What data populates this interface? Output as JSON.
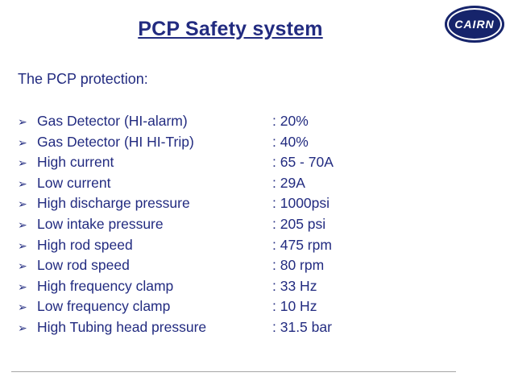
{
  "slide": {
    "title": "PCP Safety system",
    "intro": "The PCP protection:",
    "bullet_glyph": "➢",
    "items": [
      {
        "label": "Gas Detector (HI-alarm)",
        "value": ": 20%"
      },
      {
        "label": "Gas Detector (HI HI-Trip)",
        "value": ": 40%"
      },
      {
        "label": "High current",
        "value": ": 65 - 70A"
      },
      {
        "label": "Low current",
        "value": ": 29A"
      },
      {
        "label": "High discharge pressure",
        "value": ": 1000psi"
      },
      {
        "label": "Low intake pressure",
        "value": ": 205 psi"
      },
      {
        "label": "High rod speed",
        "value": ": 475 rpm"
      },
      {
        "label": "Low rod speed",
        "value": ": 80 rpm"
      },
      {
        "label": "High frequency clamp",
        "value": ": 33 Hz"
      },
      {
        "label": "Low frequency clamp",
        "value": ": 10 Hz"
      },
      {
        "label": "High Tubing head pressure",
        "value": ": 31.5 bar"
      }
    ],
    "logo": {
      "text": "CAIRN"
    },
    "colors": {
      "text": "#222b80",
      "logo_bg": "#16246b",
      "rule": "#a6a6a6"
    }
  }
}
